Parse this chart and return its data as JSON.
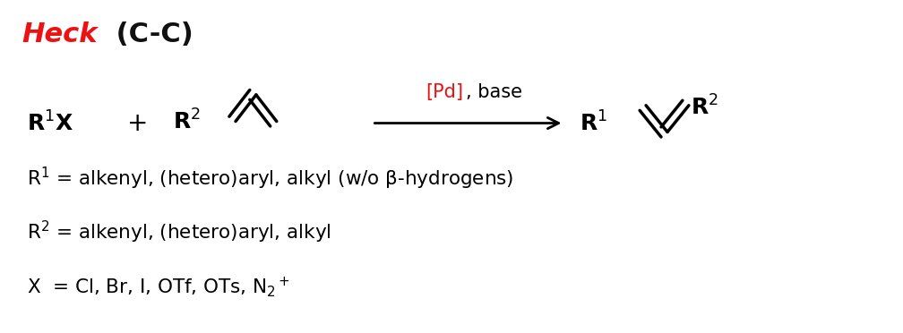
{
  "title_heck": "Heck",
  "title_cc": " (C-C)",
  "title_color_heck": "#ee1111",
  "title_color_cc": "#111111",
  "background_color": "#ffffff",
  "arrow_label_pd": "[Pd]",
  "arrow_label_base": ", base",
  "arrow_label_color": "#ee1111",
  "desc_line1": "R$^1$ = alkenyl, (hetero)aryl, alkyl (w/o β-hydrogens)",
  "desc_line2": "R$^2$ = alkenyl, (hetero)aryl, alkyl",
  "desc_line3": "X  = Cl, Br, I, OTf, OTs, N$_2$$^+$",
  "figsize": [
    10.08,
    3.72
  ],
  "dpi": 100
}
